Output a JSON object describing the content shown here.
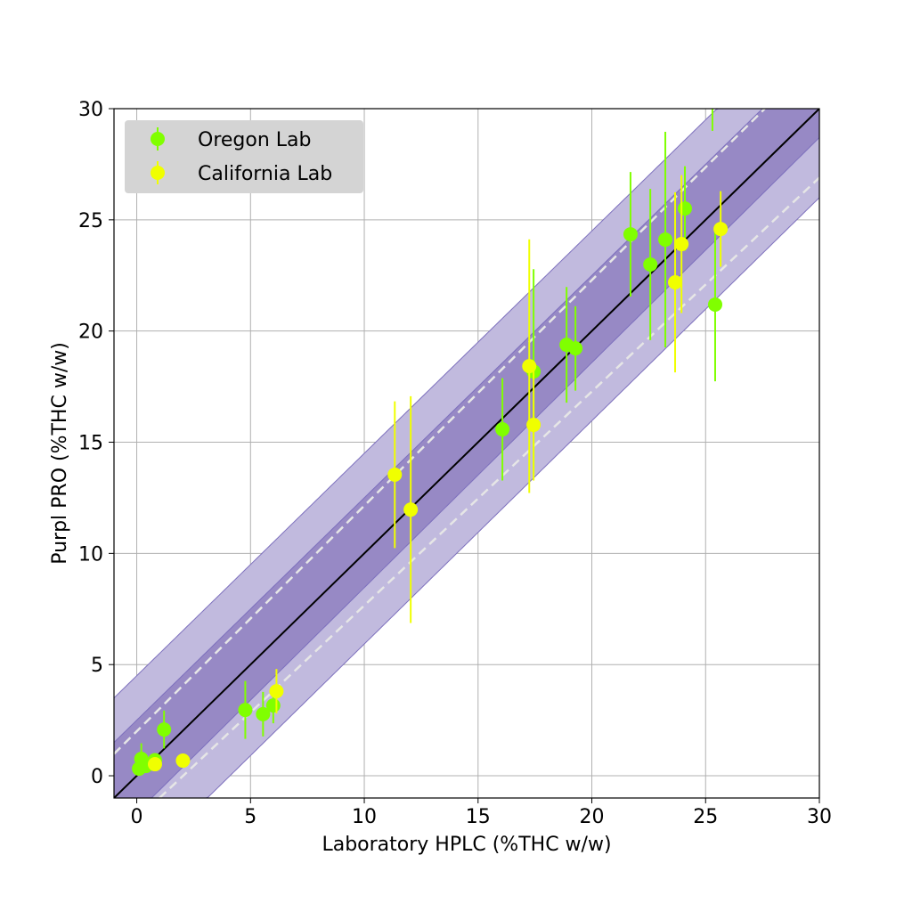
{
  "chart_data": {
    "type": "scatter",
    "title": "",
    "xlabel": "Laboratory HPLC (%THC w/w)",
    "ylabel": "Purpl PRO (%THC w/w)",
    "xlim": [
      -1,
      30
    ],
    "ylim": [
      -1,
      30
    ],
    "xticks": [
      0,
      5,
      10,
      15,
      20,
      25,
      30
    ],
    "yticks": [
      0,
      5,
      10,
      15,
      20,
      25,
      30
    ],
    "grid": true,
    "legend_position": "top-left",
    "reference_lines": {
      "identity": [
        [
          0,
          0
        ],
        [
          30,
          30
        ]
      ],
      "upper_dashed": [
        [
          0,
          2
        ],
        [
          27.6,
          30
        ]
      ],
      "lower_dashed": [
        [
          1,
          -1
        ],
        [
          30,
          26.9
        ]
      ]
    },
    "bands": {
      "outer": {
        "upper": [
          [
            -1,
            3.5
          ],
          [
            25.5,
            30
          ]
        ],
        "lower": [
          [
            3.1,
            -1
          ],
          [
            30,
            26
          ]
        ],
        "color": "#c1bade"
      },
      "inner": {
        "upper": [
          [
            -1,
            1.5
          ],
          [
            27.5,
            30
          ]
        ],
        "lower": [
          [
            0.65,
            -1
          ],
          [
            30,
            28.7
          ]
        ],
        "color": "#9789c5"
      }
    },
    "series": [
      {
        "name": "Oregon Lab",
        "color": "#80ff00",
        "points": [
          {
            "x": 0.2,
            "y": 0.76,
            "err": 0.7
          },
          {
            "x": 0.1,
            "y": 0.32,
            "err": 0
          },
          {
            "x": 0.4,
            "y": 0.44,
            "err": 0
          },
          {
            "x": 0.8,
            "y": 0.7,
            "err": 0
          },
          {
            "x": 1.2,
            "y": 2.08,
            "err": 0.85
          },
          {
            "x": 4.77,
            "y": 2.96,
            "err": 1.3
          },
          {
            "x": 5.55,
            "y": 2.77,
            "err": 1.0
          },
          {
            "x": 6.0,
            "y": 3.16,
            "err": 0.8
          },
          {
            "x": 16.07,
            "y": 15.58,
            "err": 2.3
          },
          {
            "x": 17.44,
            "y": 18.18,
            "err": 4.6
          },
          {
            "x": 18.89,
            "y": 19.38,
            "err": 2.6
          },
          {
            "x": 19.28,
            "y": 19.22,
            "err": 1.9
          },
          {
            "x": 21.7,
            "y": 24.35,
            "err": 2.8
          },
          {
            "x": 22.57,
            "y": 22.99,
            "err": 3.4
          },
          {
            "x": 23.23,
            "y": 24.11,
            "err": 4.85
          },
          {
            "x": 24.09,
            "y": 25.51,
            "err": 1.9
          },
          {
            "x": 25.42,
            "y": 21.19,
            "err": 3.45
          },
          {
            "x": 25.3,
            "y": 32.5,
            "err": 3.5
          }
        ]
      },
      {
        "name": "California Lab",
        "color": "#f0ff00",
        "points": [
          {
            "x": 0.8,
            "y": 0.52,
            "err": 0
          },
          {
            "x": 2.03,
            "y": 0.68,
            "err": 0
          },
          {
            "x": 6.14,
            "y": 3.8,
            "err": 1.0
          },
          {
            "x": 11.34,
            "y": 13.54,
            "err": 3.3
          },
          {
            "x": 12.04,
            "y": 11.97,
            "err": 5.1
          },
          {
            "x": 17.25,
            "y": 18.42,
            "err": 5.7
          },
          {
            "x": 17.44,
            "y": 15.78,
            "err": 2.5
          },
          {
            "x": 23.66,
            "y": 22.19,
            "err": 4.05
          },
          {
            "x": 23.94,
            "y": 23.91,
            "err": 3.1
          },
          {
            "x": 25.66,
            "y": 24.59,
            "err": 1.7
          }
        ]
      }
    ]
  }
}
